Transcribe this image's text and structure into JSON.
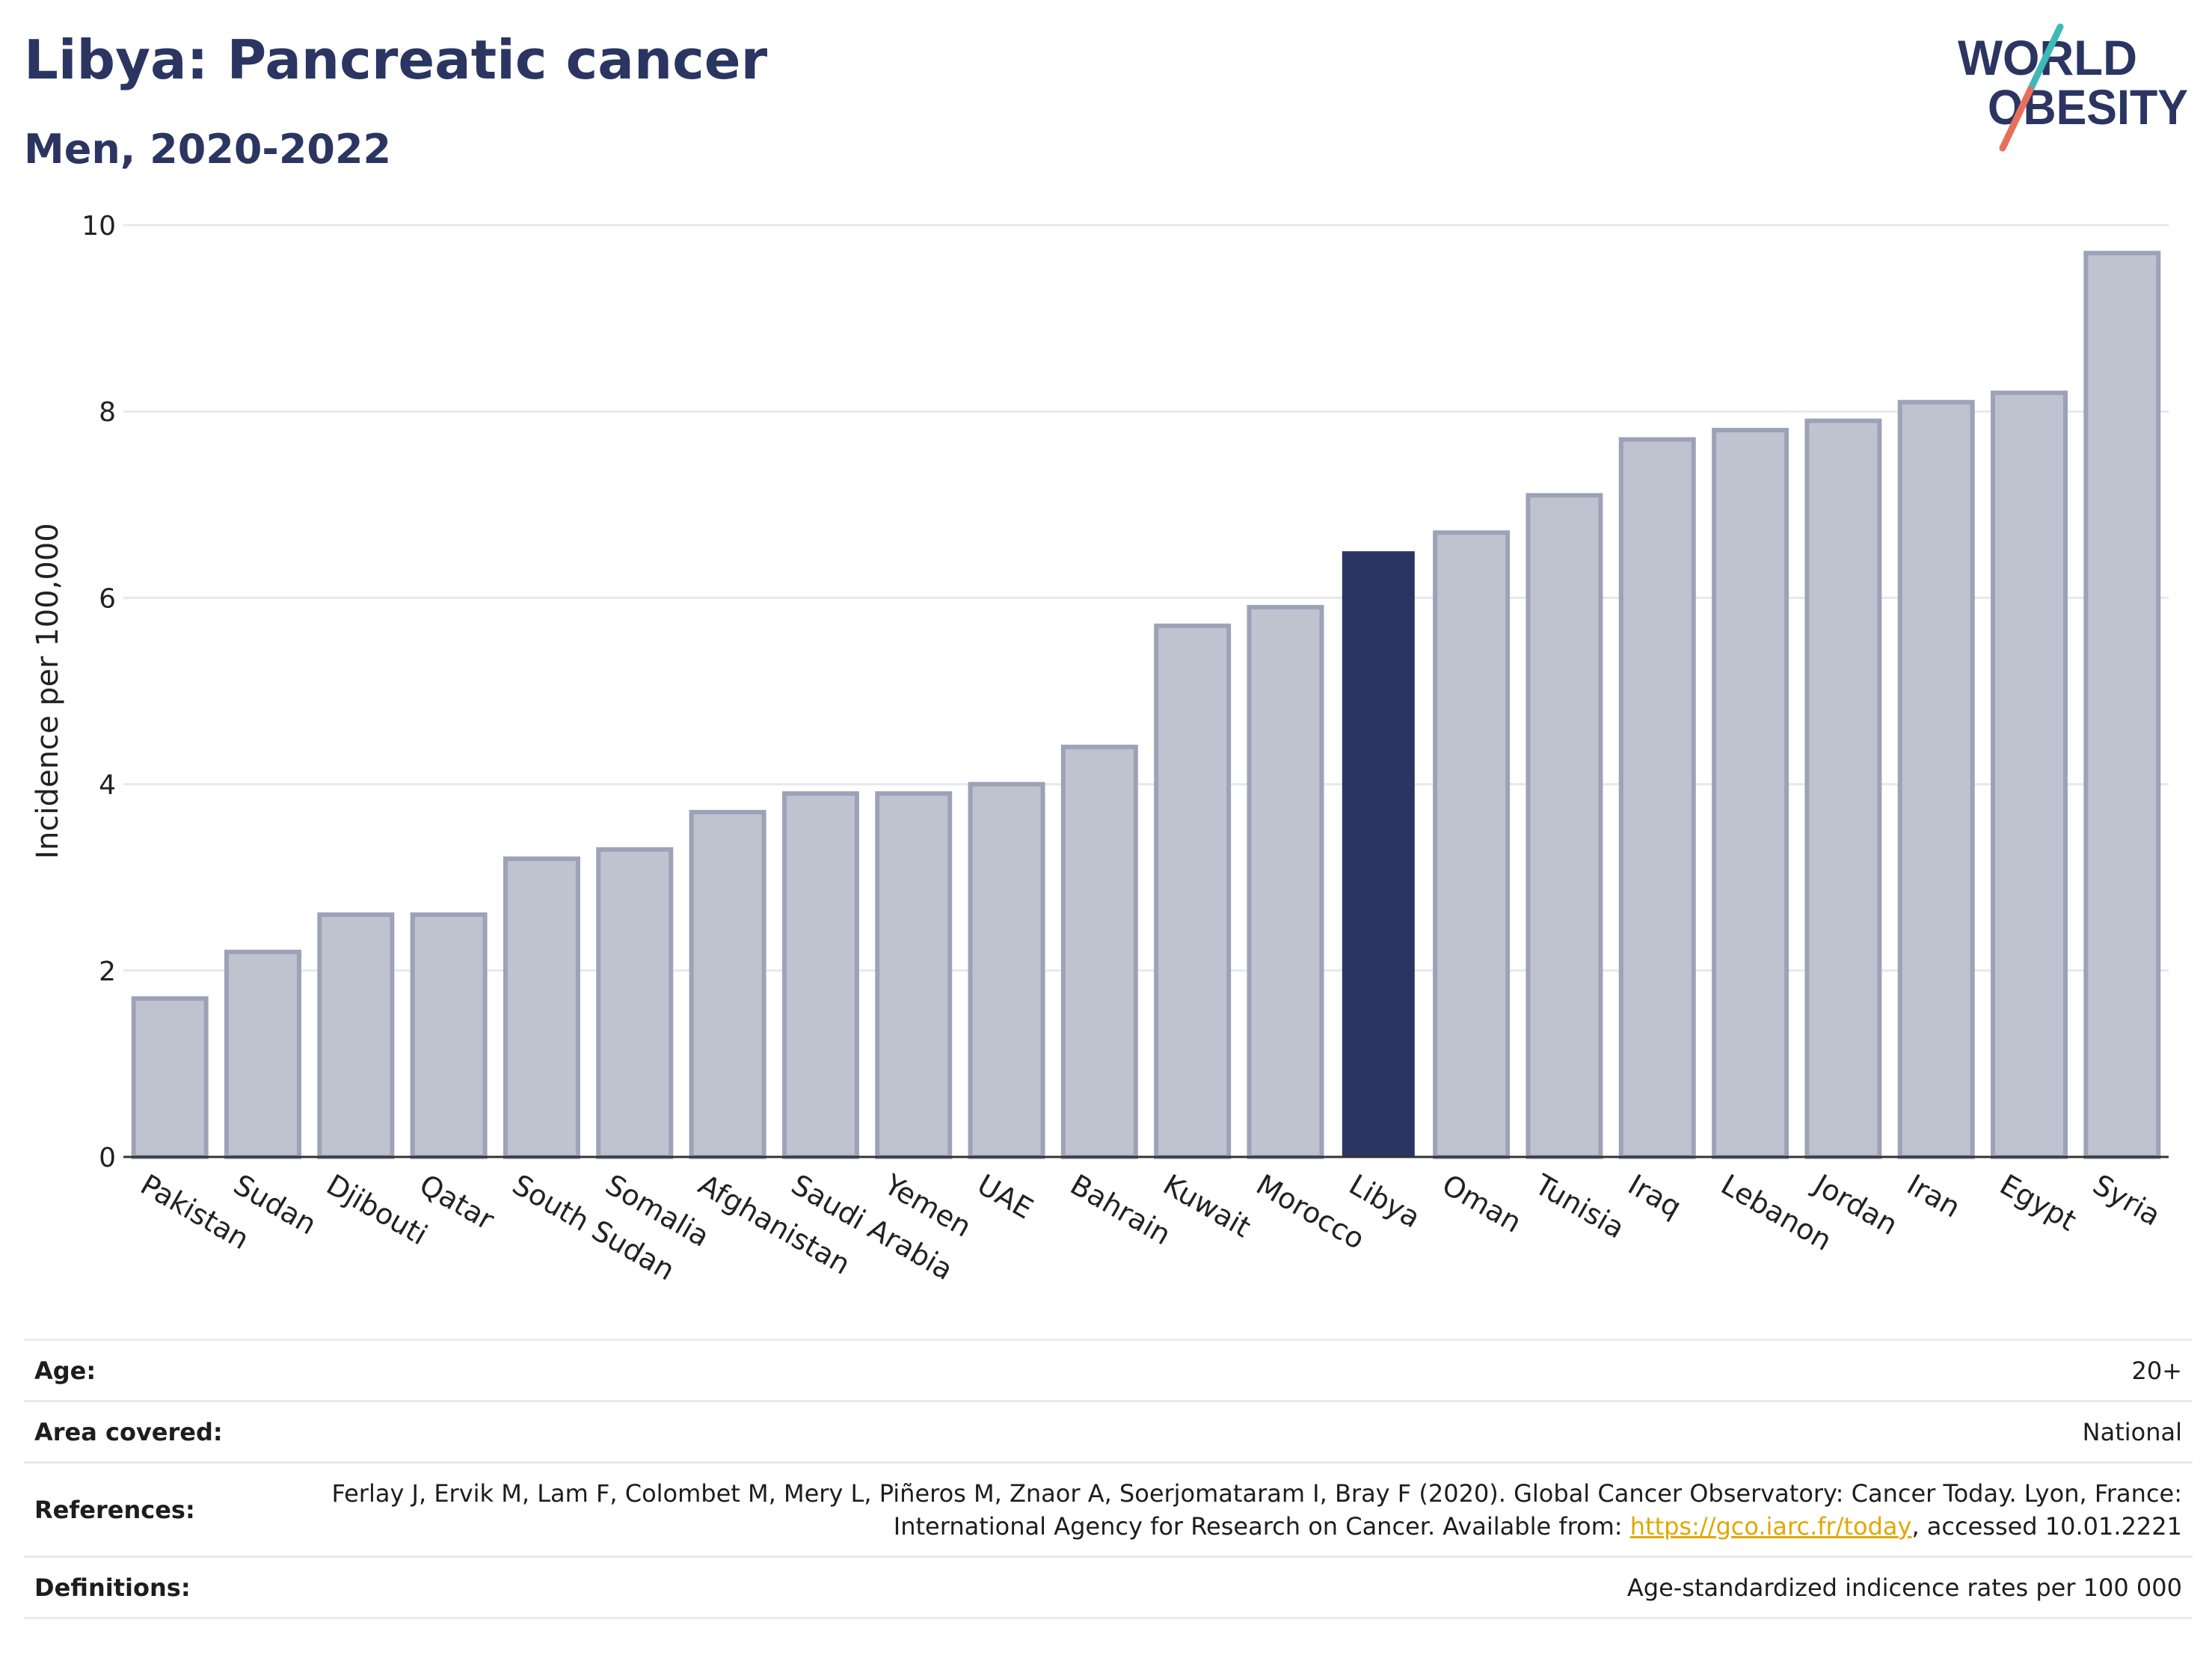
{
  "header": {
    "title": "Libya: Pancreatic cancer",
    "subtitle": "Men, 2020-2022"
  },
  "logo": {
    "line1": "WORLD",
    "line2": "OBESITY",
    "accent_teal": "#3fb8b8",
    "accent_coral": "#e8705a",
    "text_color": "#2b3561"
  },
  "colors": {
    "highlight": "#2b3561",
    "bar_fill": "#bfc3d0",
    "bar_stroke": "#9ca2b8"
  },
  "chart_data": {
    "type": "bar",
    "categories": [
      "Pakistan",
      "Sudan",
      "Djibouti",
      "Qatar",
      "South Sudan",
      "Somalia",
      "Afghanistan",
      "Saudi Arabia",
      "Yemen",
      "UAE",
      "Bahrain",
      "Kuwait",
      "Morocco",
      "Libya",
      "Oman",
      "Tunisia",
      "Iraq",
      "Lebanon",
      "Jordan",
      "Iran",
      "Egypt",
      "Syria"
    ],
    "values": [
      1.7,
      2.2,
      2.6,
      2.6,
      3.2,
      3.3,
      3.7,
      3.9,
      3.9,
      4.0,
      4.4,
      5.7,
      5.9,
      6.5,
      6.7,
      7.1,
      7.7,
      7.8,
      7.9,
      8.1,
      8.2,
      9.7
    ],
    "highlight": "Libya",
    "ylabel": "Incidence per 100,000",
    "ylim": [
      0,
      10
    ],
    "yticks": [
      0,
      2,
      4,
      6,
      8,
      10
    ],
    "grid": true
  },
  "meta": {
    "age_label": "Age:",
    "age_value": "20+",
    "area_label": "Area covered:",
    "area_value": "National",
    "ref_label": "References:",
    "ref_text_1": "Ferlay J, Ervik M, Lam F, Colombet M, Mery L, Piñeros M, Znaor A, Soerjomataram I, Bray F (2020). Global Cancer Observatory: Cancer Today. Lyon, France: International Agency for Research on Cancer. Available from: ",
    "ref_link": "https://gco.iarc.fr/today",
    "ref_text_2": ", accessed 10.01.2221",
    "def_label": "Definitions:",
    "def_value": "Age-standardized indicence rates per 100 000"
  }
}
